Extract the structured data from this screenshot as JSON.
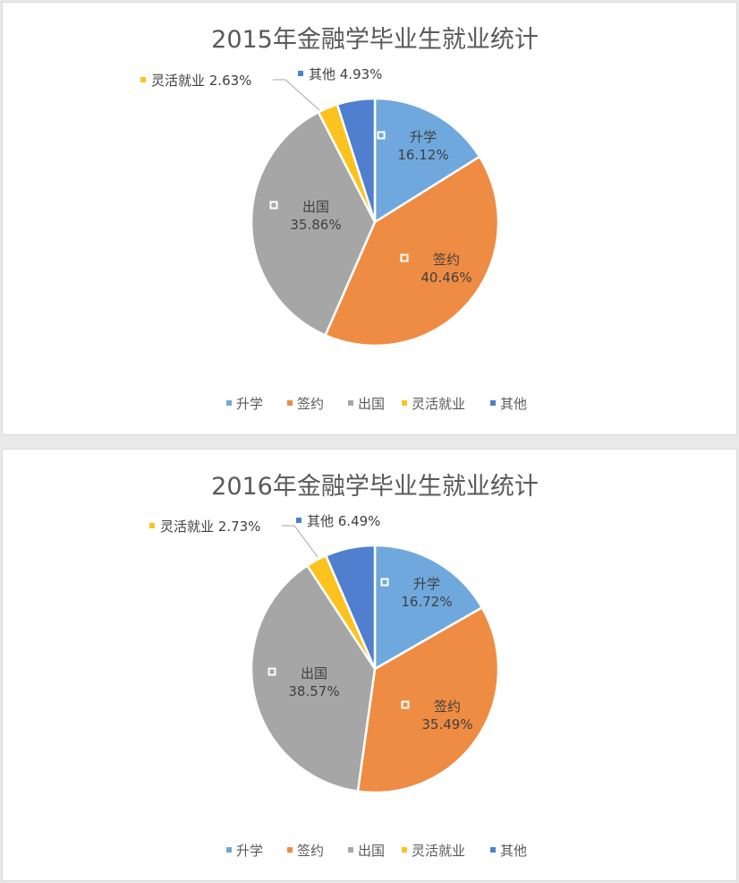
{
  "chart_data": [
    {
      "type": "pie",
      "title": "2015年金融学毕业生就业统计",
      "categories": [
        "升学",
        "签约",
        "出国",
        "灵活就业",
        "其他"
      ],
      "values": [
        16.12,
        40.46,
        35.86,
        2.63,
        4.93
      ],
      "value_labels": [
        "16.12%",
        "40.46%",
        "35.86%",
        "2.63%",
        "4.93%"
      ],
      "colors": [
        "#6fa8dc",
        "#ef8c43",
        "#a6a6a6",
        "#fcc31e",
        "#4f7fce"
      ],
      "legend": "bottom",
      "start_angle": "12 o'clock, clockwise"
    },
    {
      "type": "pie",
      "title": "2016年金融学毕业生就业统计",
      "categories": [
        "升学",
        "签约",
        "出国",
        "灵活就业",
        "其他"
      ],
      "values": [
        16.72,
        35.49,
        38.57,
        2.73,
        6.49
      ],
      "value_labels": [
        "16.72%",
        "35.49%",
        "38.57%",
        "2.73%",
        "6.49%"
      ],
      "colors": [
        "#6fa8dc",
        "#ef8c43",
        "#a6a6a6",
        "#fcc31e",
        "#4f7fce"
      ],
      "legend": "bottom",
      "start_angle": "12 o'clock, clockwise"
    }
  ]
}
